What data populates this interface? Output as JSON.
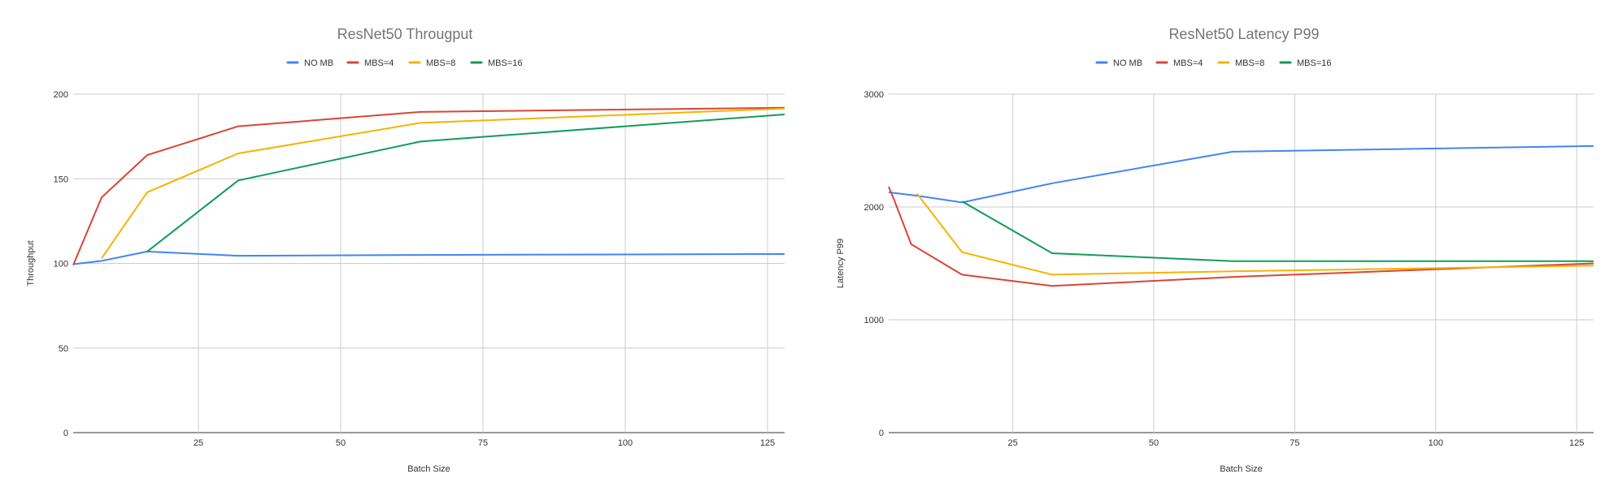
{
  "chart_data": [
    {
      "type": "line",
      "title": "ResNet50 Througput",
      "xlabel": "Batch Size",
      "ylabel": "Throughput",
      "xlim": [
        3,
        128
      ],
      "ylim": [
        0,
        200
      ],
      "xticks": [
        25,
        50,
        75,
        100,
        125
      ],
      "yticks": [
        0,
        50,
        100,
        150,
        200
      ],
      "grid": true,
      "legend": "top",
      "series": [
        {
          "name": "NO MB",
          "color": "#4285f4",
          "x": [
            3,
            8,
            16,
            32,
            64,
            128
          ],
          "y": [
            99.5,
            101.5,
            107,
            104.5,
            105,
            105.5
          ]
        },
        {
          "name": "MBS=4",
          "color": "#db4437",
          "x": [
            3,
            8,
            16,
            32,
            64,
            128
          ],
          "y": [
            99,
            139,
            164,
            181,
            189.5,
            192
          ]
        },
        {
          "name": "MBS=8",
          "color": "#f4b400",
          "x": [
            8,
            16,
            32,
            64,
            128
          ],
          "y": [
            103,
            142,
            165,
            183,
            191.5
          ]
        },
        {
          "name": "MBS=16",
          "color": "#0f9d58",
          "x": [
            16,
            32,
            64,
            128
          ],
          "y": [
            107,
            149,
            172,
            188
          ]
        }
      ]
    },
    {
      "type": "line",
      "title": "ResNet50 Latency P99",
      "xlabel": "Batch Size",
      "ylabel": "Latency P99",
      "xlim": [
        3,
        128
      ],
      "ylim": [
        0,
        3000
      ],
      "xticks": [
        25,
        50,
        75,
        100,
        125
      ],
      "yticks": [
        0,
        1000,
        2000,
        3000
      ],
      "grid": true,
      "legend": "top",
      "series": [
        {
          "name": "NO MB",
          "color": "#4285f4",
          "x": [
            3,
            8,
            16,
            32,
            64,
            128
          ],
          "y": [
            2130,
            2100,
            2040,
            2210,
            2490,
            2540
          ]
        },
        {
          "name": "MBS=4",
          "color": "#db4437",
          "x": [
            3,
            4,
            7,
            16,
            32,
            64,
            128
          ],
          "y": [
            2180,
            2060,
            1670,
            1400,
            1300,
            1380,
            1500
          ]
        },
        {
          "name": "MBS=8",
          "color": "#f4b400",
          "x": [
            8,
            16,
            32,
            64,
            128
          ],
          "y": [
            2120,
            1600,
            1400,
            1430,
            1480
          ]
        },
        {
          "name": "MBS=16",
          "color": "#0f9d58",
          "x": [
            16,
            32,
            64,
            128
          ],
          "y": [
            2050,
            1590,
            1520,
            1520
          ]
        }
      ]
    }
  ]
}
